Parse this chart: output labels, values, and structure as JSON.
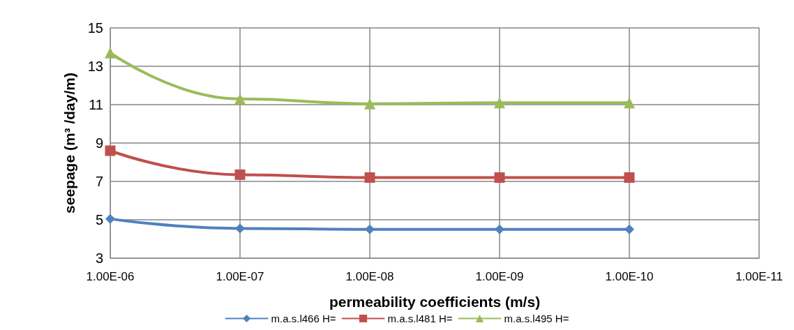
{
  "chart_data": {
    "type": "line",
    "xlabel": "permeability coefficients (m/s)",
    "ylabel": "seepage (m³ /day/m)",
    "categories": [
      "1.00E-06",
      "1.00E-07",
      "1.00E-08",
      "1.00E-09",
      "1.00E-10",
      "1.00E-11"
    ],
    "series": [
      {
        "name": "m.a.s.l466 H=",
        "color": "#4f81bd",
        "marker": "diamond",
        "values": [
          5.05,
          4.55,
          4.5,
          4.5,
          4.5,
          null
        ]
      },
      {
        "name": "m.a.s.l481 H=",
        "color": "#c0504d",
        "marker": "square",
        "values": [
          8.6,
          7.35,
          7.2,
          7.2,
          7.2,
          null
        ]
      },
      {
        "name": "m.a.s.l495 H=",
        "color": "#9bbb59",
        "marker": "triangle",
        "values": [
          13.7,
          11.3,
          11.05,
          11.1,
          11.1,
          null
        ]
      }
    ],
    "ylim": [
      3,
      15
    ],
    "yticks": [
      3,
      5,
      7,
      9,
      11,
      13,
      15
    ],
    "grid": true,
    "legend": "bottom",
    "line_style": "solid"
  }
}
